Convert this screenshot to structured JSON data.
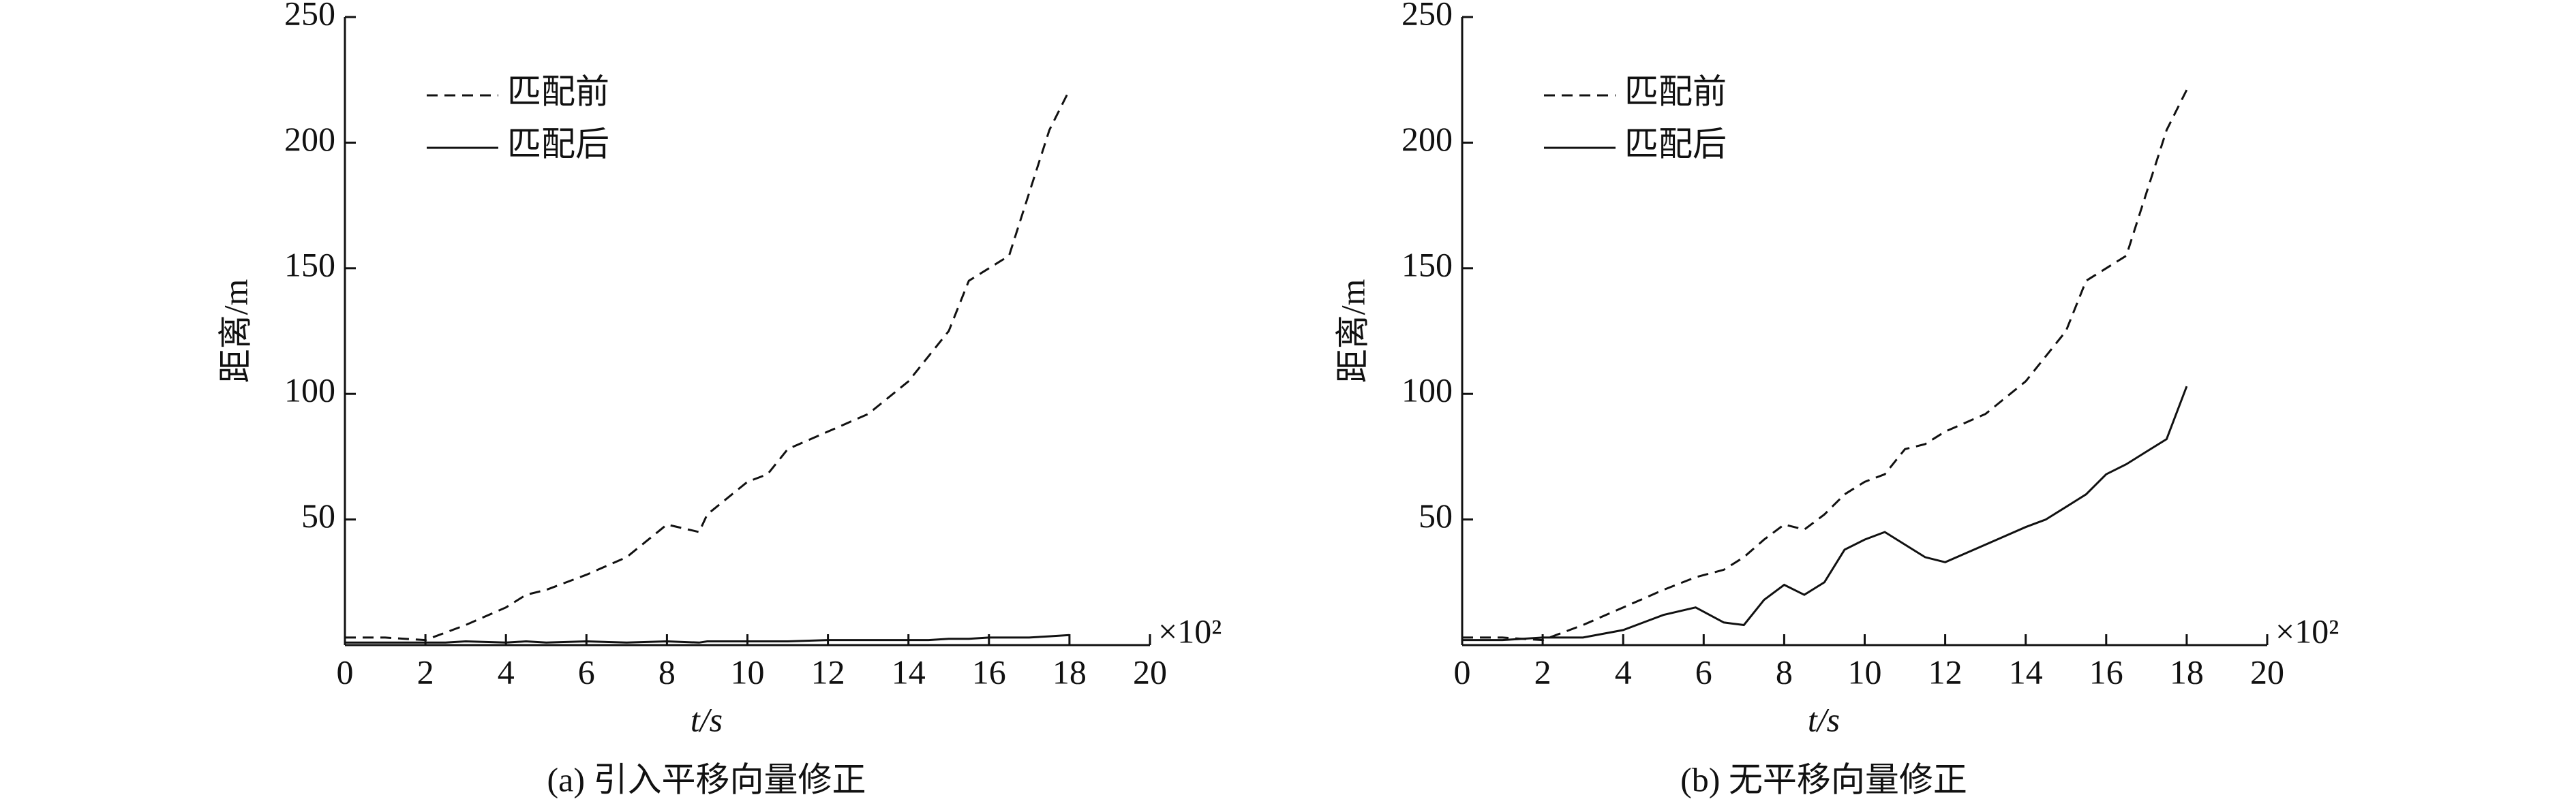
{
  "chart_data": [
    {
      "type": "line",
      "caption": "(a) 引入平移向量修正",
      "ylabel": "距离/m",
      "xlabel": "t/s",
      "annotation": "×10²",
      "xlim": [
        0,
        20
      ],
      "ylim": [
        0,
        250
      ],
      "xticks": [
        0,
        2,
        4,
        6,
        8,
        10,
        12,
        14,
        16,
        18,
        20
      ],
      "yticks": [
        50,
        100,
        150,
        200,
        250
      ],
      "x": [
        0,
        1,
        2,
        2.5,
        3,
        4,
        4.5,
        5,
        6,
        7,
        8,
        8.8,
        9,
        10,
        10.5,
        11,
        12,
        13,
        14,
        14.5,
        15,
        15.5,
        16,
        16.5,
        17,
        17.5,
        18
      ],
      "series": [
        {
          "name": "匹配前",
          "color": "#111111",
          "dash": "dashed",
          "values": [
            3,
            3,
            2,
            5,
            8,
            15,
            20,
            22,
            28,
            35,
            48,
            45,
            52,
            65,
            68,
            78,
            85,
            92,
            105,
            115,
            125,
            145,
            150,
            155,
            180,
            205,
            221
          ]
        },
        {
          "name": "匹配后",
          "color": "#111111",
          "dash": "solid",
          "values": [
            1,
            1,
            1,
            1,
            1.5,
            1,
            1.5,
            1,
            1.5,
            1,
            1.5,
            1,
            1.5,
            1.5,
            1.5,
            1.5,
            2,
            2,
            2,
            2,
            2.5,
            2.5,
            3,
            3,
            3,
            3.5,
            4
          ]
        }
      ],
      "legend": "upper-left"
    },
    {
      "type": "line",
      "caption": "(b) 无平移向量修正",
      "ylabel": "距离/m",
      "xlabel": "t/s",
      "annotation": "×10²",
      "xlim": [
        0,
        20
      ],
      "ylim": [
        0,
        250
      ],
      "xticks": [
        0,
        2,
        4,
        6,
        8,
        10,
        12,
        14,
        16,
        18,
        20
      ],
      "yticks": [
        50,
        100,
        150,
        200,
        250
      ],
      "x": [
        0,
        1,
        2,
        3,
        4,
        5,
        5.8,
        6.5,
        7,
        7.5,
        8,
        8.5,
        9,
        9.5,
        10,
        10.5,
        11,
        11.5,
        12,
        13,
        14,
        14.5,
        15,
        15.5,
        16,
        16.5,
        17,
        17.5,
        18
      ],
      "series": [
        {
          "name": "匹配前",
          "color": "#111111",
          "dash": "dashed",
          "values": [
            3,
            3,
            2,
            8,
            15,
            22,
            27,
            30,
            35,
            42,
            48,
            46,
            52,
            60,
            65,
            68,
            78,
            80,
            85,
            92,
            105,
            115,
            125,
            145,
            150,
            155,
            180,
            205,
            221
          ]
        },
        {
          "name": "匹配后",
          "color": "#111111",
          "dash": "solid",
          "values": [
            2,
            2,
            3,
            3,
            6,
            12,
            15,
            9,
            8,
            18,
            24,
            20,
            25,
            38,
            42,
            45,
            40,
            35,
            33,
            40,
            47,
            50,
            55,
            60,
            68,
            72,
            77,
            82,
            103
          ]
        }
      ],
      "legend": "upper-left"
    }
  ]
}
